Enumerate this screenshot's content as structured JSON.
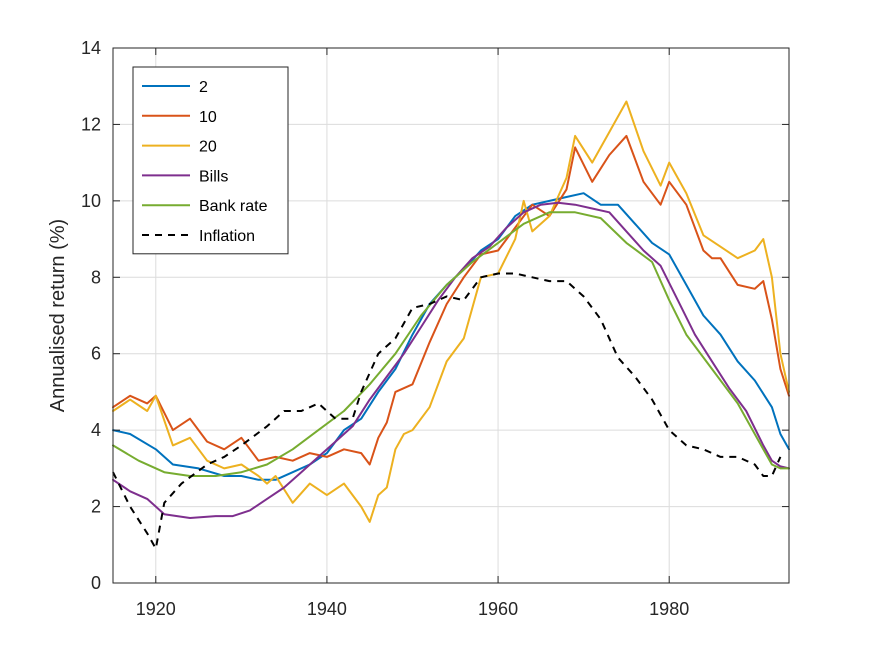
{
  "chart_data": {
    "type": "line",
    "title": "",
    "xlabel": "",
    "ylabel": "Annualised return (%)",
    "xlim": [
      1915,
      1994
    ],
    "ylim": [
      0,
      14
    ],
    "xticks": [
      1920,
      1940,
      1960,
      1980
    ],
    "yticks": [
      0,
      2,
      4,
      6,
      8,
      10,
      12,
      14
    ],
    "grid": true,
    "legend_position": "top-left",
    "series": [
      {
        "name": "2",
        "color": "#0072BD",
        "dash": "solid",
        "x": [
          1915,
          1917,
          1920,
          1922,
          1925,
          1928,
          1930,
          1932,
          1934,
          1936,
          1938,
          1940,
          1942,
          1944,
          1946,
          1948,
          1950,
          1952,
          1954,
          1956,
          1958,
          1960,
          1962,
          1964,
          1966,
          1968,
          1970,
          1972,
          1974,
          1976,
          1978,
          1980,
          1982,
          1984,
          1986,
          1988,
          1990,
          1992,
          1993,
          1994
        ],
        "values": [
          4.0,
          3.9,
          3.5,
          3.1,
          3.0,
          2.8,
          2.8,
          2.7,
          2.7,
          2.9,
          3.1,
          3.4,
          4.0,
          4.3,
          5.0,
          5.6,
          6.5,
          7.3,
          7.8,
          8.2,
          8.7,
          9.0,
          9.6,
          9.9,
          10.0,
          10.1,
          10.2,
          9.9,
          9.9,
          9.4,
          8.9,
          8.6,
          7.8,
          7.0,
          6.5,
          5.8,
          5.3,
          4.6,
          3.9,
          3.5
        ]
      },
      {
        "name": "10",
        "color": "#D95319",
        "dash": "solid",
        "x": [
          1915,
          1917,
          1919,
          1920,
          1922,
          1924,
          1926,
          1928,
          1930,
          1932,
          1934,
          1936,
          1938,
          1940,
          1942,
          1944,
          1945,
          1946,
          1947,
          1948,
          1950,
          1952,
          1954,
          1956,
          1958,
          1960,
          1962,
          1964,
          1966,
          1968,
          1969,
          1971,
          1973,
          1975,
          1977,
          1979,
          1980,
          1982,
          1984,
          1985,
          1986,
          1988,
          1990,
          1991,
          1992,
          1993,
          1994
        ],
        "values": [
          4.6,
          4.9,
          4.7,
          4.9,
          4.0,
          4.3,
          3.7,
          3.5,
          3.8,
          3.2,
          3.3,
          3.2,
          3.4,
          3.3,
          3.5,
          3.4,
          3.1,
          3.8,
          4.2,
          5.0,
          5.2,
          6.3,
          7.3,
          8.0,
          8.6,
          8.7,
          9.3,
          9.9,
          9.6,
          10.3,
          11.4,
          10.5,
          11.2,
          11.7,
          10.5,
          9.9,
          10.5,
          9.9,
          8.7,
          8.5,
          8.5,
          7.8,
          7.7,
          7.9,
          6.9,
          5.6,
          4.9
        ]
      },
      {
        "name": "20",
        "color": "#EDB120",
        "dash": "solid",
        "x": [
          1915,
          1917,
          1919,
          1920,
          1922,
          1924,
          1926,
          1928,
          1930,
          1932,
          1933,
          1934,
          1936,
          1938,
          1940,
          1942,
          1944,
          1945,
          1946,
          1947,
          1948,
          1949,
          1950,
          1952,
          1954,
          1956,
          1958,
          1960,
          1962,
          1963,
          1964,
          1966,
          1968,
          1969,
          1971,
          1973,
          1975,
          1977,
          1979,
          1980,
          1982,
          1984,
          1986,
          1988,
          1990,
          1991,
          1992,
          1993,
          1994
        ],
        "values": [
          4.5,
          4.8,
          4.5,
          4.9,
          3.6,
          3.8,
          3.2,
          3.0,
          3.1,
          2.8,
          2.6,
          2.8,
          2.1,
          2.6,
          2.3,
          2.6,
          2.0,
          1.6,
          2.3,
          2.5,
          3.5,
          3.9,
          4.0,
          4.6,
          5.8,
          6.4,
          8.0,
          8.1,
          9.0,
          10.0,
          9.2,
          9.6,
          10.6,
          11.7,
          11.0,
          11.8,
          12.6,
          11.3,
          10.4,
          11.0,
          10.2,
          9.1,
          8.8,
          8.5,
          8.7,
          9.0,
          8.0,
          6.0,
          5.0
        ]
      },
      {
        "name": "Bills",
        "color": "#7E2F8E",
        "dash": "solid",
        "x": [
          1915,
          1917,
          1919,
          1921,
          1924,
          1927,
          1929,
          1931,
          1933,
          1935,
          1937,
          1939,
          1941,
          1943,
          1945,
          1947,
          1949,
          1951,
          1953,
          1955,
          1957,
          1959,
          1961,
          1963,
          1965,
          1967,
          1969,
          1971,
          1973,
          1975,
          1977,
          1979,
          1981,
          1983,
          1985,
          1987,
          1989,
          1991,
          1992,
          1993,
          1994
        ],
        "values": [
          2.7,
          2.4,
          2.2,
          1.8,
          1.7,
          1.75,
          1.75,
          1.9,
          2.2,
          2.5,
          2.9,
          3.3,
          3.7,
          4.1,
          4.8,
          5.4,
          6.0,
          6.7,
          7.4,
          8.0,
          8.5,
          8.8,
          9.3,
          9.7,
          9.9,
          9.95,
          9.9,
          9.8,
          9.7,
          9.2,
          8.7,
          8.3,
          7.4,
          6.5,
          5.8,
          5.1,
          4.5,
          3.6,
          3.2,
          3.05,
          3.0
        ]
      },
      {
        "name": "Bank rate",
        "color": "#77AC30",
        "dash": "solid",
        "x": [
          1915,
          1918,
          1921,
          1924,
          1927,
          1930,
          1933,
          1936,
          1939,
          1942,
          1945,
          1948,
          1951,
          1954,
          1957,
          1960,
          1963,
          1966,
          1969,
          1972,
          1975,
          1978,
          1980,
          1982,
          1985,
          1988,
          1991,
          1992,
          1993,
          1994
        ],
        "values": [
          3.6,
          3.2,
          2.9,
          2.8,
          2.8,
          2.9,
          3.1,
          3.5,
          4.0,
          4.5,
          5.2,
          6.0,
          7.0,
          7.8,
          8.4,
          8.9,
          9.4,
          9.7,
          9.7,
          9.55,
          8.9,
          8.4,
          7.4,
          6.5,
          5.6,
          4.7,
          3.5,
          3.1,
          3.0,
          3.0
        ]
      },
      {
        "name": "Inflation",
        "color": "#000000",
        "dash": "dashed",
        "x": [
          1915,
          1917,
          1919,
          1920,
          1921,
          1923,
          1926,
          1928,
          1930,
          1933,
          1935,
          1937,
          1939,
          1941,
          1943,
          1944,
          1946,
          1948,
          1950,
          1952,
          1954,
          1956,
          1958,
          1960,
          1962,
          1964,
          1966,
          1968,
          1970,
          1972,
          1974,
          1976,
          1978,
          1980,
          1982,
          1984,
          1986,
          1988,
          1990,
          1991,
          1992,
          1993
        ],
        "values": [
          2.9,
          2.0,
          1.3,
          0.9,
          2.1,
          2.6,
          3.1,
          3.3,
          3.6,
          4.1,
          4.5,
          4.5,
          4.7,
          4.3,
          4.3,
          5.0,
          6.0,
          6.4,
          7.2,
          7.3,
          7.5,
          7.4,
          8.0,
          8.1,
          8.1,
          8.0,
          7.9,
          7.9,
          7.5,
          6.9,
          5.9,
          5.4,
          4.8,
          4.0,
          3.6,
          3.5,
          3.3,
          3.3,
          3.1,
          2.8,
          2.8,
          3.3
        ]
      }
    ]
  }
}
